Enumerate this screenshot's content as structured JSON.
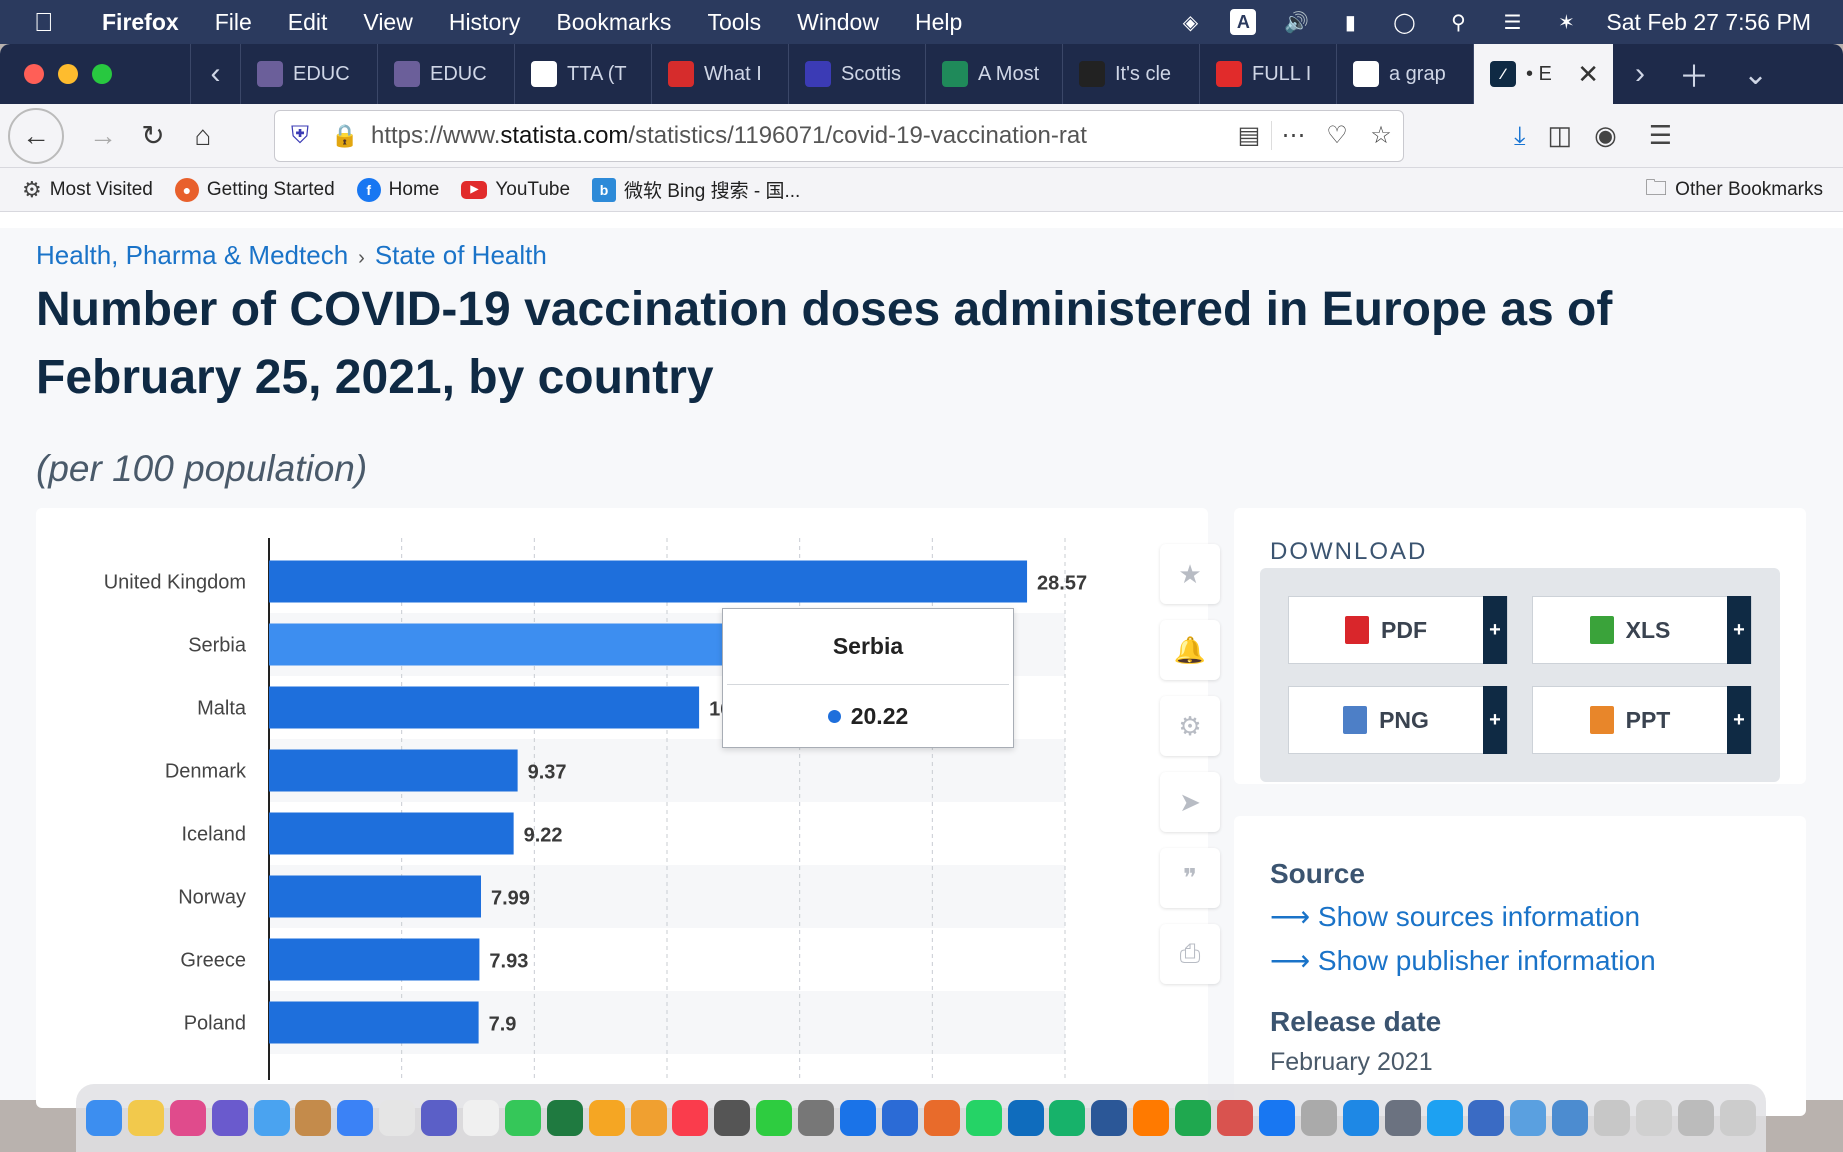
{
  "menubar": {
    "app": "Firefox",
    "items": [
      "File",
      "Edit",
      "View",
      "History",
      "Bookmarks",
      "Tools",
      "Window",
      "Help"
    ],
    "clock": "Sat Feb 27  7:56 PM"
  },
  "tabs": [
    {
      "label": "EDUC",
      "icon": "uni-icon",
      "color": "#6b5f9a"
    },
    {
      "label": "EDUC",
      "icon": "uni-icon",
      "color": "#6b5f9a"
    },
    {
      "label": "TTA (T",
      "icon": "tta-icon",
      "color": "#ffffff"
    },
    {
      "label": "What I",
      "icon": "bars-icon",
      "color": "#d62c2c"
    },
    {
      "label": "Scottis",
      "icon": "circle-icon",
      "color": "#3b3bb5"
    },
    {
      "label": "A Most",
      "icon": "isr-icon",
      "color": "#1f8a5a"
    },
    {
      "label": "It's cle",
      "icon": "t-icon",
      "color": "#222222"
    },
    {
      "label": "FULL I",
      "icon": "youtube-icon",
      "color": "#e12b2b"
    },
    {
      "label": "a grap",
      "icon": "google-icon",
      "color": "#ffffff"
    }
  ],
  "active_tab": {
    "label": "• E"
  },
  "url": {
    "prefix": "https://www.",
    "domain": "statista.com",
    "path": "/statistics/1196071/covid-19-vaccination-rat"
  },
  "bookmarks": [
    {
      "label": "Most Visited",
      "icon": "gear-icon"
    },
    {
      "label": "Getting Started",
      "icon": "firefox-icon"
    },
    {
      "label": "Home",
      "icon": "facebook-icon"
    },
    {
      "label": "YouTube",
      "icon": "youtube-icon"
    },
    {
      "label": "微软 Bing 搜索 - 国...",
      "icon": "bing-icon"
    }
  ],
  "other_bookmarks": "Other Bookmarks",
  "breadcrumb": {
    "first": "Health, Pharma & Medtech",
    "sep": "›",
    "second": "State of Health"
  },
  "title": "Number of COVID-19 vaccination doses administered in Europe as of February 25, 2021, by country",
  "subtitle": "(per 100 population)",
  "chart_data": {
    "type": "bar",
    "orientation": "horizontal",
    "categories": [
      "United Kingdom",
      "Serbia",
      "Malta",
      "Denmark",
      "Iceland",
      "Norway",
      "Greece",
      "Poland"
    ],
    "values": [
      28.57,
      20.22,
      16.21,
      9.37,
      9.22,
      7.99,
      7.93,
      7.9
    ],
    "value_labels": [
      "28.57",
      "",
      "16.21",
      "9.37",
      "9.22",
      "7.99",
      "7.93",
      "7.9"
    ],
    "xlim": [
      0,
      30
    ],
    "grid": true,
    "highlighted": "Serbia",
    "bar_color": "#1e6fdc",
    "highlight_color": "#3d8ef0"
  },
  "tooltip": {
    "title": "Serbia",
    "value": "20.22"
  },
  "download": {
    "title": "DOWNLOAD",
    "buttons": [
      {
        "label": "PDF",
        "icon": "pdf-icon",
        "color": "#d9262b"
      },
      {
        "label": "XLS",
        "icon": "xls-icon",
        "color": "#3aa33a"
      },
      {
        "label": "PNG",
        "icon": "png-icon",
        "color": "#4d7fc7"
      },
      {
        "label": "PPT",
        "icon": "ppt-icon",
        "color": "#e8862a"
      }
    ]
  },
  "source": {
    "heading": "Source",
    "link1": "Show sources information",
    "link2": "Show publisher information",
    "release_heading": "Release date",
    "release_value": "February 2021"
  }
}
